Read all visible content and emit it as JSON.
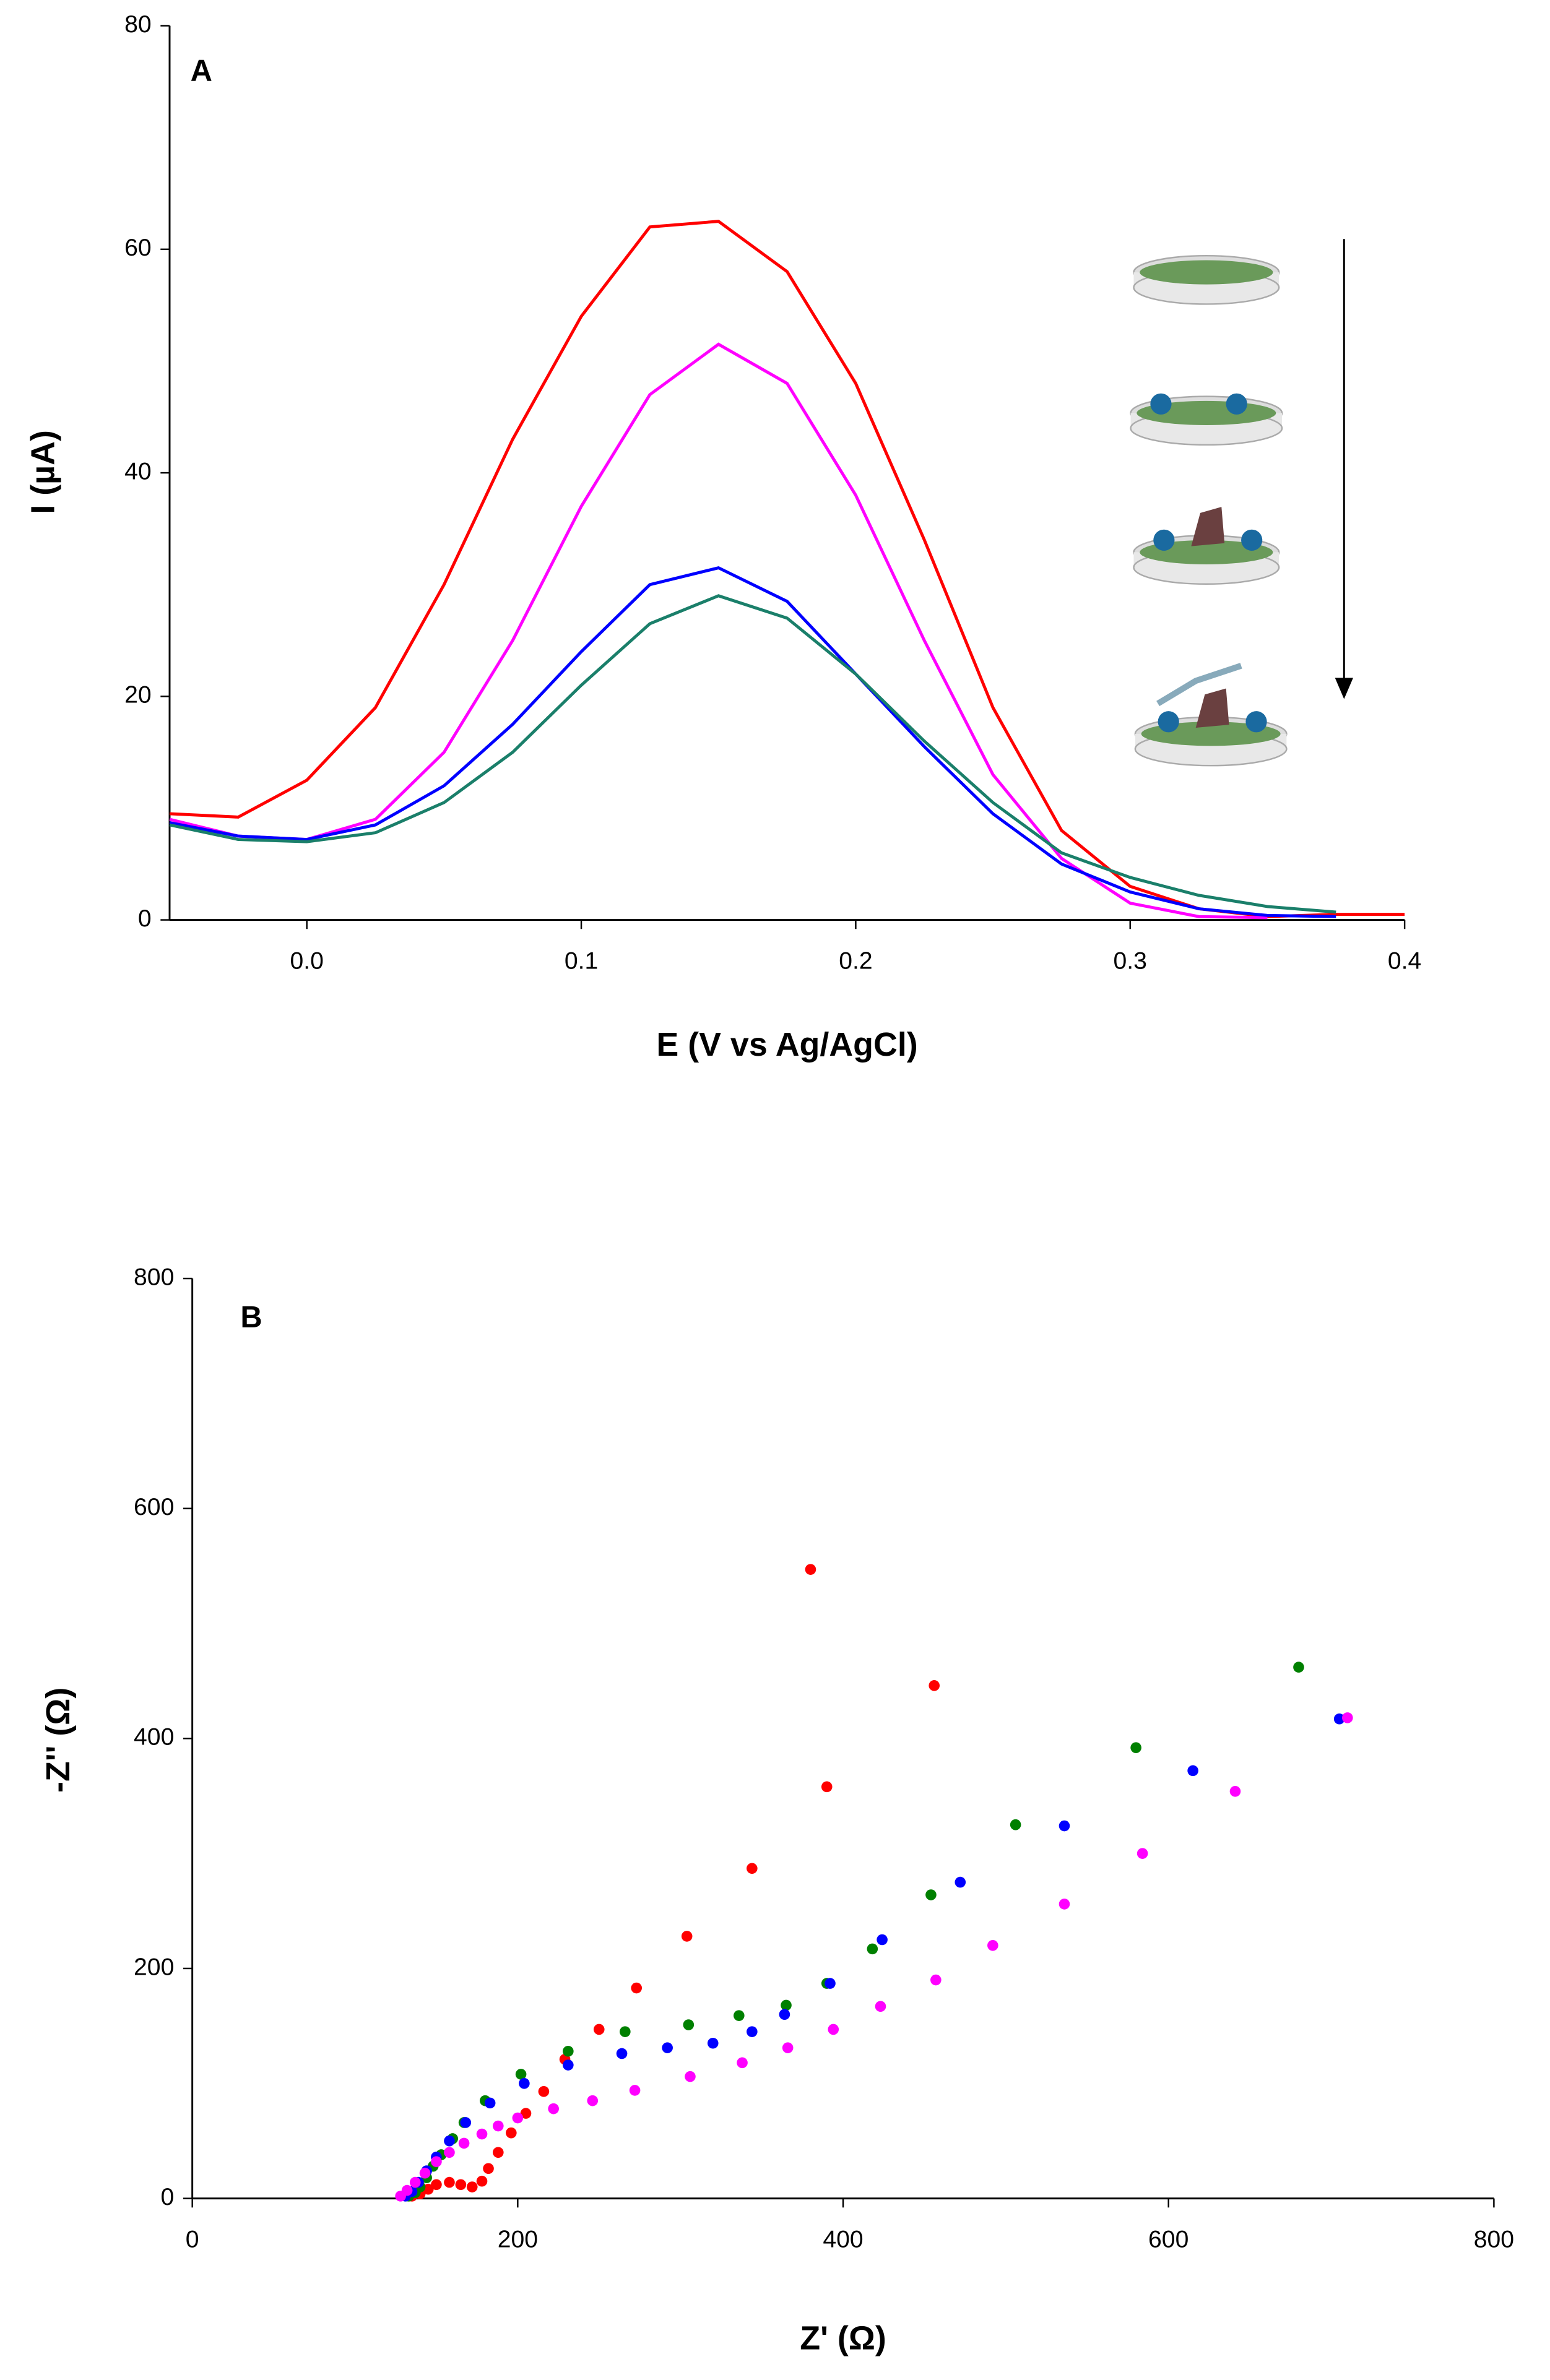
{
  "chart_data": [
    {
      "type": "line",
      "annotation": "A",
      "xlabel": "E (V vs Ag/AgCl)",
      "ylabel": "I (µA)",
      "xlim": [
        -0.05,
        0.4
      ],
      "xticks": [
        {
          "value": 0,
          "label": "0.0"
        },
        0.1,
        0.2,
        0.3,
        0.4
      ],
      "ylim": [
        0,
        80
      ],
      "yticks": [
        0,
        20,
        40,
        60,
        80
      ],
      "grid": false,
      "x": [
        -0.05,
        -0.025,
        0,
        0.025,
        0.05,
        0.075,
        0.1,
        0.125,
        0.15,
        0.175,
        0.2,
        0.225,
        0.25,
        0.275,
        0.3,
        0.325,
        0.35,
        0.375,
        0.4
      ],
      "series": [
        {
          "color": "#ff0000",
          "values": [
            9.5,
            9.2,
            12.5,
            19,
            30,
            43,
            54,
            62,
            62.5,
            58,
            48,
            34,
            19,
            8,
            3,
            1,
            0.3,
            0.5,
            0.5
          ]
        },
        {
          "color": "#ff00ff",
          "values": [
            9,
            7.5,
            7.2,
            9,
            15,
            25,
            37,
            47,
            51.5,
            48,
            38,
            25,
            13,
            5.5,
            1.5,
            0.3,
            0.2,
            null,
            null
          ]
        },
        {
          "color": "#0000ff",
          "values": [
            8.7,
            7.5,
            7.2,
            8.5,
            12,
            17.5,
            24,
            30,
            31.5,
            28.5,
            22,
            15.5,
            9.5,
            5,
            2.5,
            1,
            0.4,
            0.3,
            null
          ]
        },
        {
          "color": "#1a7f6a",
          "values": [
            8.5,
            7.2,
            7,
            7.8,
            10.5,
            15,
            21,
            26.5,
            29,
            27,
            22,
            16,
            10.5,
            6,
            3.8,
            2.2,
            1.2,
            0.7,
            null
          ]
        }
      ]
    },
    {
      "type": "scatter",
      "annotation": "B",
      "xlabel": "Z' (Ω)",
      "ylabel": "-Z'' (Ω)",
      "xlim": [
        0,
        800
      ],
      "xticks": [
        0,
        200,
        400,
        600,
        800
      ],
      "ylim": [
        0,
        800
      ],
      "yticks": [
        0,
        200,
        400,
        600,
        800
      ],
      "grid": false,
      "series": [
        {
          "color": "#ff0000",
          "x": [
            380,
            456,
            390,
            344,
            304,
            273,
            250,
            229,
            216,
            205,
            196,
            188,
            182,
            178,
            172,
            165,
            158,
            150,
            145,
            140,
            135
          ],
          "values": [
            547,
            446,
            358,
            287,
            228,
            183,
            147,
            121,
            93,
            74,
            57,
            40,
            26,
            15,
            10,
            12,
            14,
            12,
            8,
            4,
            2
          ]
        },
        {
          "color": "#008000",
          "x": [
            680,
            580,
            506,
            454,
            418,
            390,
            365,
            336,
            305,
            266,
            231,
            202,
            180,
            167,
            160,
            153,
            148,
            144,
            140,
            137,
            133
          ],
          "values": [
            462,
            392,
            325,
            264,
            217,
            187,
            168,
            159,
            151,
            145,
            128,
            108,
            85,
            66,
            52,
            38,
            28,
            18,
            10,
            5,
            2
          ]
        },
        {
          "color": "#0000ff",
          "x": [
            705,
            615,
            536,
            472,
            424,
            392,
            364,
            344,
            320,
            292,
            264,
            231,
            204,
            183,
            168,
            158,
            150,
            144,
            139,
            135,
            131
          ],
          "values": [
            417,
            372,
            324,
            275,
            225,
            187,
            160,
            145,
            135,
            131,
            126,
            116,
            100,
            83,
            66,
            50,
            36,
            24,
            14,
            6,
            2
          ]
        },
        {
          "color": "#ff00ff",
          "x": [
            710,
            641,
            584,
            536,
            492,
            457,
            423,
            394,
            366,
            338,
            306,
            272,
            246,
            222,
            200,
            188,
            178,
            167,
            158,
            150,
            143,
            137,
            132,
            128
          ],
          "values": [
            418,
            354,
            300,
            256,
            220,
            190,
            167,
            147,
            131,
            118,
            106,
            94,
            85,
            78,
            70,
            63,
            56,
            48,
            40,
            32,
            22,
            14,
            7,
            2
          ]
        }
      ]
    }
  ]
}
